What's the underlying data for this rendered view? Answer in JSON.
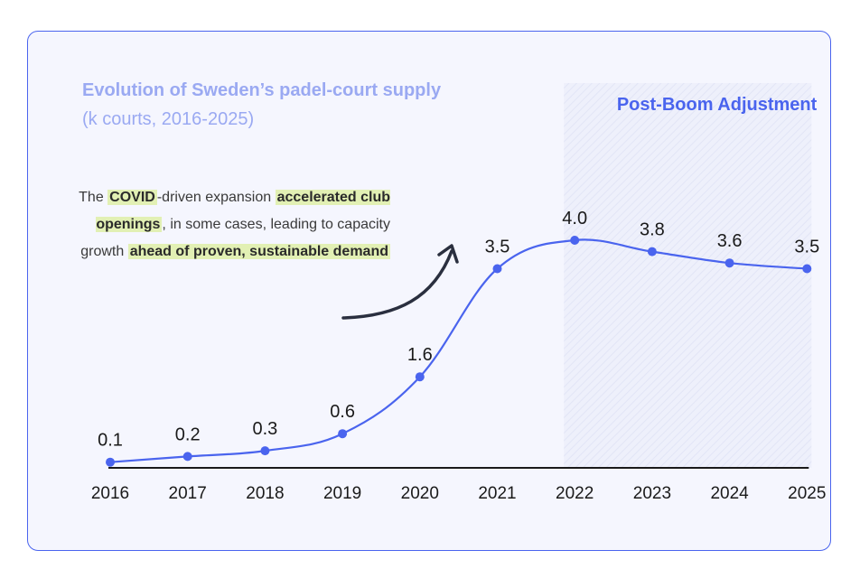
{
  "chart_data": {
    "type": "line",
    "title": "Evolution of Sweden’s padel-court supply",
    "subtitle": "(k courts, 2016-2025)",
    "x": [
      "2016",
      "2017",
      "2018",
      "2019",
      "2020",
      "2021",
      "2022",
      "2023",
      "2024",
      "2025"
    ],
    "values": [
      0.1,
      0.2,
      0.3,
      0.6,
      1.6,
      3.5,
      4.0,
      3.8,
      3.6,
      3.5
    ],
    "data_labels": [
      "0.1",
      "0.2",
      "0.3",
      "0.6",
      "1.6",
      "3.5",
      "4.0",
      "3.8",
      "3.6",
      "3.5"
    ],
    "ylim": [
      0,
      4.3
    ],
    "grid": false,
    "shaded_region": {
      "from": "2022",
      "to": "2025",
      "label": "Post-Boom Adjustment"
    },
    "line_color": "#4a64ee"
  },
  "annotation": {
    "parts": [
      {
        "text": "The ",
        "hl": false
      },
      {
        "text": "COVID",
        "hl": true
      },
      {
        "text": "-driven expansion ",
        "hl": false
      },
      {
        "text": "accelerated club openings",
        "hl": true
      },
      {
        "text": ", in some cases, leading to capacity growth ",
        "hl": false
      },
      {
        "text": "ahead of proven, sustainable demand",
        "hl": true
      }
    ]
  },
  "colors": {
    "accent": "#4a64ee",
    "title": "#9aa9f2",
    "highlight": "#e2f0b4"
  }
}
